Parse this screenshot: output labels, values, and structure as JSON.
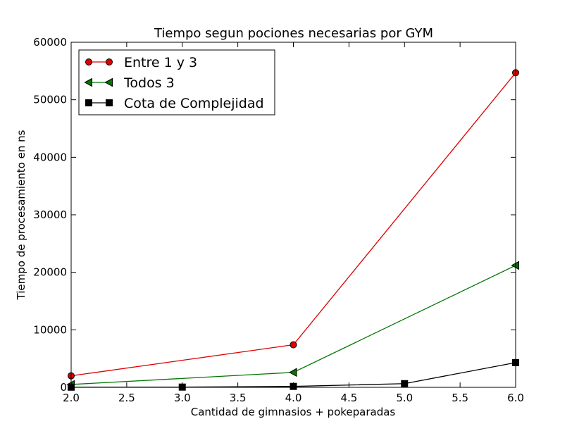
{
  "chart_data": {
    "type": "line",
    "title": "Tiempo segun pociones necesarias por GYM",
    "xlabel": "Cantidad de gimnasios + pokeparadas",
    "ylabel": "Tiempo de procesamiento en ns",
    "xlim": [
      2.0,
      6.0
    ],
    "ylim": [
      0,
      60000
    ],
    "xticks": [
      2.0,
      2.5,
      3.0,
      3.5,
      4.0,
      4.5,
      5.0,
      5.5,
      6.0
    ],
    "xtick_labels": [
      "2.0",
      "2.5",
      "3.0",
      "3.5",
      "4.0",
      "4.5",
      "5.0",
      "5.5",
      "6.0"
    ],
    "yticks": [
      0,
      10000,
      20000,
      30000,
      40000,
      50000,
      60000
    ],
    "ytick_labels": [
      "0",
      "10000",
      "20000",
      "30000",
      "40000",
      "50000",
      "60000"
    ],
    "grid": false,
    "legend_position": "top-left",
    "series": [
      {
        "name": "Entre 1 y 3",
        "color": "#dd0000",
        "marker": "circle",
        "x": [
          2,
          4,
          6
        ],
        "y": [
          2000,
          7400,
          54700
        ]
      },
      {
        "name": "Todos 3",
        "color": "#007700",
        "marker": "triangle-left",
        "x": [
          2,
          4,
          6
        ],
        "y": [
          500,
          2600,
          21200
        ]
      },
      {
        "name": "Cota de Complejidad",
        "color": "#000000",
        "marker": "square",
        "x": [
          2,
          3,
          4,
          5,
          6
        ],
        "y": [
          30,
          40,
          160,
          640,
          4300
        ]
      }
    ]
  }
}
